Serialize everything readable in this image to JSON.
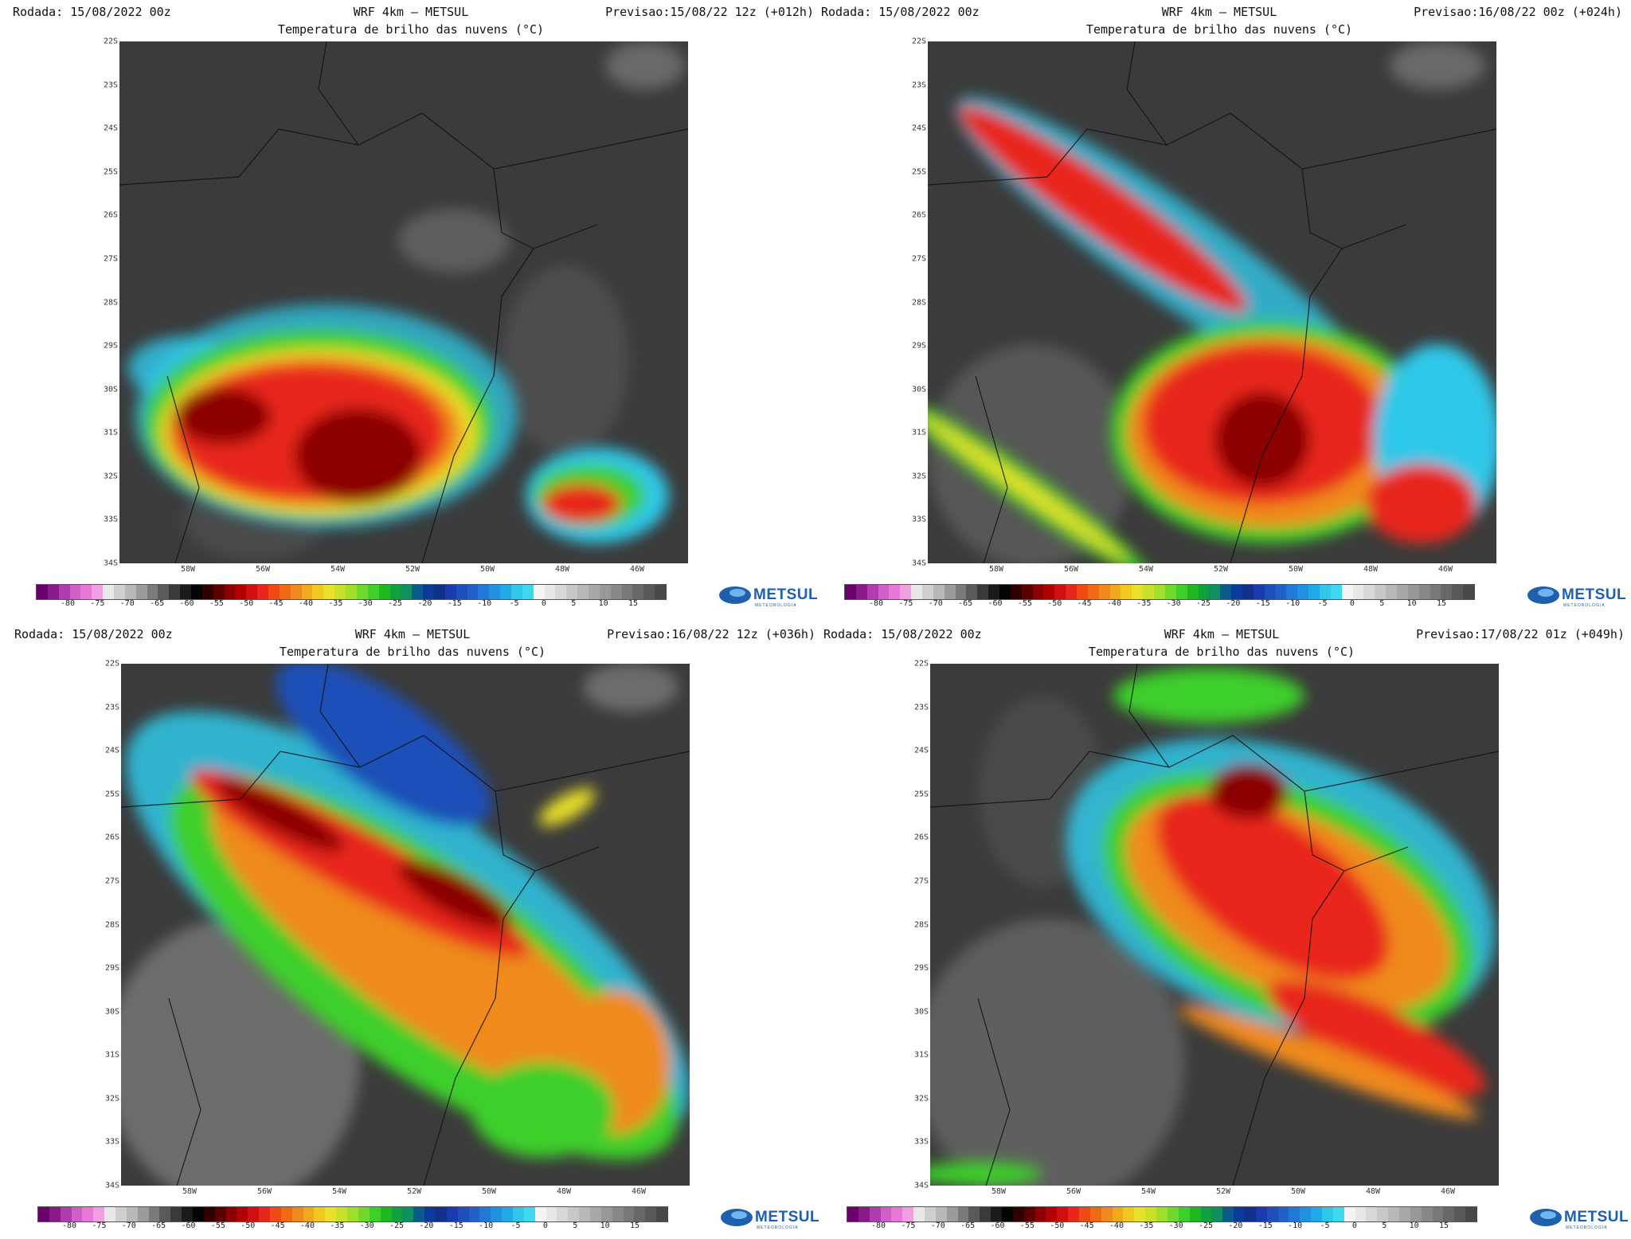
{
  "panels": [
    {
      "run": "Rodada: 15/08/2022 00z",
      "model": "WRF 4km – METSUL",
      "forecast": "Previsao:15/08/22 12z (+012h)",
      "variable": "Temperatura de brilho das nuvens (°C)"
    },
    {
      "run": "Rodada: 15/08/2022 00z",
      "model": "WRF 4km – METSUL",
      "forecast": "Previsao:16/08/22 00z (+024h)",
      "variable": "Temperatura de brilho das nuvens (°C)"
    },
    {
      "run": "Rodada: 15/08/2022 00z",
      "model": "WRF 4km – METSUL",
      "forecast": "Previsao:16/08/22 12z (+036h)",
      "variable": "Temperatura de brilho das nuvens (°C)"
    },
    {
      "run": "Rodada: 15/08/2022 00z",
      "model": "WRF 4km – METSUL",
      "forecast": "Previsao:17/08/22 01z (+049h)",
      "variable": "Temperatura de brilho das nuvens (°C)"
    }
  ],
  "lat_labels": [
    "22S",
    "23S",
    "24S",
    "25S",
    "26S",
    "27S",
    "28S",
    "29S",
    "30S",
    "31S",
    "32S",
    "33S",
    "34S"
  ],
  "lon_labels": [
    "58W",
    "56W",
    "54W",
    "52W",
    "50W",
    "48W",
    "46W"
  ],
  "colorbar_labels": [
    "-80",
    "-75",
    "-70",
    "-65",
    "-60",
    "-55",
    "-50",
    "-45",
    "-40",
    "-35",
    "-30",
    "-25",
    "-20",
    "-15",
    "-10",
    "-5",
    "0",
    "5",
    "10",
    "15"
  ],
  "logo": {
    "brand": "METSUL",
    "sub": "METEOROLOGIA"
  },
  "colors": {
    "map_background": "#3a3a3a",
    "cold_cloud_core": "#8b0000",
    "cold_cloud": "#e8261c",
    "mid_cloud_orange": "#f08a1c",
    "mid_cloud_yellow": "#e8e02a",
    "mid_cloud_green": "#3ecf2a",
    "warm_cloud_blue": "#1f4fb8",
    "warm_cloud_cyan": "#2fc8e8",
    "logo_blue": "#1e5fae"
  }
}
